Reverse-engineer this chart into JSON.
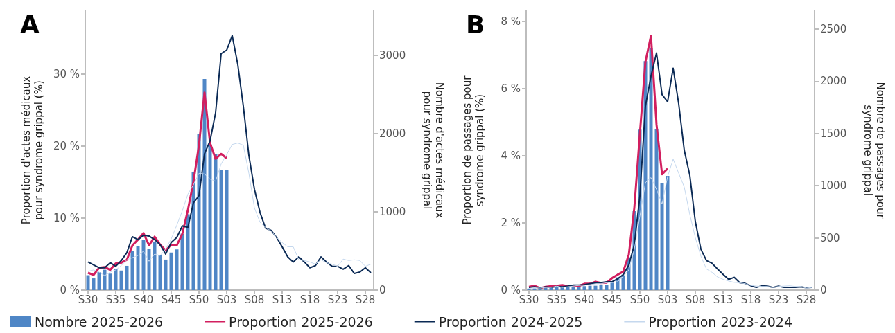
{
  "chart_data": [
    {
      "type": "bar",
      "title": "A",
      "ylabel": "Proportion d'actes médicaux\npour syndrome grippal (%)",
      "y2label": "Nombre d'actes médicaux\npour syndrome grippal",
      "categories": [
        "S30",
        null,
        null,
        null,
        null,
        "S35",
        null,
        null,
        null,
        null,
        "S40",
        null,
        null,
        null,
        null,
        "S45",
        null,
        null,
        null,
        null,
        "S50",
        null,
        null,
        null,
        null,
        "S03",
        null,
        null,
        null,
        null,
        "S08",
        null,
        null,
        null,
        null,
        "S13",
        null,
        null,
        null,
        null,
        "S18",
        null,
        null,
        null,
        null,
        "S23",
        null,
        null,
        null,
        null,
        "S28",
        null
      ],
      "ylim": [
        0,
        38.8
      ],
      "yticks": [
        {
          "value": 0,
          "label": "0 %"
        },
        {
          "value": 10,
          "label": "10 %"
        },
        {
          "value": 20,
          "label": "20 %"
        },
        {
          "value": 30,
          "label": "30 %"
        }
      ],
      "y2lim": [
        0,
        3575
      ],
      "y2ticks": [
        0,
        1000,
        2000,
        3000
      ],
      "grid": false,
      "legend": "bottom",
      "marker": "none",
      "series": [
        {
          "name": "Nombre 2025-2026",
          "axis": "y2",
          "color": "#4f86c6",
          "values": [
            190,
            150,
            230,
            260,
            210,
            270,
            250,
            310,
            500,
            560,
            640,
            530,
            620,
            450,
            390,
            480,
            520,
            720,
            970,
            1510,
            2000,
            2700,
            1860,
            1740,
            1540,
            1530,
            null,
            null,
            null,
            null,
            null,
            null,
            null,
            null,
            null,
            null,
            null,
            null,
            null,
            null,
            null,
            null,
            null,
            null,
            null,
            null,
            null,
            null,
            null,
            null,
            null,
            null
          ]
        },
        {
          "name": "Proportion 2025-2026",
          "type": "line",
          "color": "#d21f5f",
          "values": [
            2.4,
            2.1,
            3.1,
            3.2,
            2.8,
            3.7,
            3.8,
            4.2,
            6.2,
            7.0,
            7.9,
            6.2,
            7.4,
            6.3,
            5.5,
            6.3,
            6.2,
            7.8,
            11.1,
            15.0,
            20.1,
            27.4,
            20.4,
            18.2,
            18.9,
            18.3,
            null,
            null,
            null,
            null,
            null,
            null,
            null,
            null,
            null,
            null,
            null,
            null,
            null,
            null,
            null,
            null,
            null,
            null,
            null,
            null,
            null,
            null,
            null,
            null,
            null,
            null
          ]
        },
        {
          "name": "Proportion 2024-2025",
          "type": "line",
          "color": "#0b2a55",
          "values": [
            3.9,
            3.5,
            3.1,
            3.1,
            3.8,
            3.3,
            4.1,
            5.2,
            7.4,
            7.0,
            7.6,
            7.5,
            7.0,
            6.3,
            5.0,
            6.6,
            7.3,
            8.9,
            8.7,
            12.1,
            13.1,
            18.9,
            20.7,
            24.6,
            32.8,
            33.3,
            35.3,
            31.3,
            25.5,
            18.7,
            14.0,
            10.8,
            8.6,
            8.3,
            7.3,
            6.0,
            4.6,
            3.9,
            4.6,
            3.9,
            3.1,
            3.4,
            4.6,
            3.9,
            3.3,
            3.3,
            2.9,
            3.4,
            2.3,
            2.5,
            3.1,
            2.4
          ]
        },
        {
          "name": "Proportion 2023-2024",
          "type": "line",
          "color": "#c5d8ee",
          "values": [
            2.6,
            2.8,
            2.5,
            2.0,
            2.5,
            2.8,
            3.4,
            4.2,
            4.5,
            4.8,
            5.4,
            4.0,
            5.0,
            4.8,
            5.7,
            7.1,
            9.0,
            11.0,
            13.3,
            14.6,
            16.2,
            16.1,
            15.4,
            15.1,
            17.5,
            18.8,
            20.2,
            20.4,
            20.1,
            16.2,
            11.4,
            9.4,
            8.7,
            8.2,
            7.3,
            6.6,
            6.0,
            6.0,
            4.2,
            4.1,
            3.9,
            3.6,
            4.2,
            3.8,
            3.6,
            3.3,
            4.3,
            4.1,
            4.2,
            4.1,
            3.3,
            3.6
          ]
        }
      ]
    },
    {
      "type": "bar",
      "title": "B",
      "ylabel": "Proportion de passages pour\nsyndrome grippal (%)",
      "y2label": "Nombre de passages pour\nsyndrome grippal",
      "categories": [
        "S30",
        null,
        null,
        null,
        null,
        "S35",
        null,
        null,
        null,
        null,
        "S40",
        null,
        null,
        null,
        null,
        "S45",
        null,
        null,
        null,
        null,
        "S50",
        null,
        null,
        null,
        null,
        "S03",
        null,
        null,
        null,
        null,
        "S08",
        null,
        null,
        null,
        null,
        "S13",
        null,
        null,
        null,
        null,
        "S18",
        null,
        null,
        null,
        null,
        "S23",
        null,
        null,
        null,
        null,
        "S28",
        null
      ],
      "ylim": [
        0,
        8.33
      ],
      "yticks": [
        {
          "value": 0,
          "label": "0 %"
        },
        {
          "value": 2,
          "label": "2 %"
        },
        {
          "value": 4,
          "label": "4 %"
        },
        {
          "value": 6,
          "label": "6 %"
        },
        {
          "value": 8,
          "label": "8 %"
        }
      ],
      "y2lim": [
        0,
        2679
      ],
      "y2ticks": [
        0,
        500,
        1000,
        1500,
        2000,
        2500
      ],
      "grid": false,
      "legend": false,
      "marker": "none",
      "series": [
        {
          "axis": "y2",
          "color": "#4f86c6",
          "values": [
            15,
            16,
            15,
            27,
            30,
            27,
            33,
            27,
            27,
            38,
            38,
            42,
            42,
            49,
            49,
            71,
            122,
            148,
            314,
            756,
            1536,
            2193,
            2314,
            1540,
            1021,
            1094,
            null,
            null,
            null,
            null,
            null,
            null,
            null,
            null,
            null,
            null,
            null,
            null,
            null,
            null,
            null,
            null,
            null,
            null,
            null,
            null,
            null,
            null,
            null,
            null,
            null,
            null
          ]
        },
        {
          "type": "line",
          "color": "#d21f5f",
          "values": [
            0.1,
            0.13,
            0.06,
            0.1,
            0.12,
            0.13,
            0.15,
            0.12,
            0.13,
            0.12,
            0.19,
            0.19,
            0.25,
            0.21,
            0.22,
            0.36,
            0.46,
            0.55,
            1.05,
            2.45,
            4.65,
            6.8,
            7.57,
            4.93,
            3.45,
            3.62,
            null,
            null,
            null,
            null,
            null,
            null,
            null,
            null,
            null,
            null,
            null,
            null,
            null,
            null,
            null,
            null,
            null,
            null,
            null,
            null,
            null,
            null,
            null,
            null,
            null,
            null
          ]
        },
        {
          "type": "line",
          "color": "#0b2a55",
          "values": [
            0.08,
            0.1,
            0.06,
            0.1,
            0.08,
            0.11,
            0.1,
            0.12,
            0.15,
            0.15,
            0.16,
            0.19,
            0.21,
            0.22,
            0.25,
            0.25,
            0.34,
            0.46,
            0.74,
            1.35,
            2.8,
            5.48,
            6.37,
            7.06,
            5.82,
            5.61,
            6.61,
            5.55,
            4.17,
            3.42,
            2.04,
            1.22,
            0.88,
            0.8,
            0.63,
            0.47,
            0.32,
            0.38,
            0.22,
            0.2,
            0.13,
            0.08,
            0.13,
            0.12,
            0.08,
            0.12,
            0.08,
            0.08,
            0.08,
            0.1,
            0.07,
            0.08
          ]
        },
        {
          "type": "line",
          "color": "#c5d8ee",
          "values": [
            0.05,
            0.07,
            0.06,
            0.08,
            0.08,
            0.12,
            0.08,
            0.1,
            0.12,
            0.14,
            0.15,
            0.16,
            0.19,
            0.19,
            0.22,
            0.23,
            0.25,
            0.41,
            0.6,
            1.22,
            2.2,
            3.2,
            3.35,
            3.0,
            2.56,
            3.38,
            3.9,
            3.48,
            3.07,
            2.25,
            1.56,
            1.01,
            0.63,
            0.53,
            0.39,
            0.32,
            0.27,
            0.23,
            0.22,
            0.19,
            0.14,
            0.12,
            0.11,
            0.11,
            0.08,
            0.11,
            0.12,
            0.13,
            0.11,
            0.11,
            0.06,
            0.08
          ]
        }
      ]
    }
  ]
}
